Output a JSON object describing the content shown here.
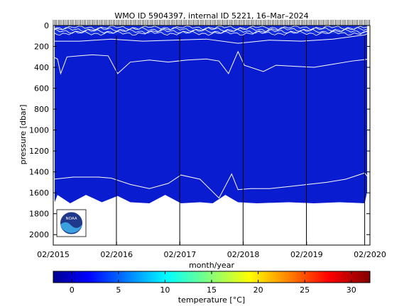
{
  "chart_data": {
    "type": "heatmap",
    "title": "WMO ID 5904397, internal ID 5221, 16–Mar–2024",
    "xlabel": "month/year",
    "ylabel": "pressure [dbar]",
    "x_tick_labels": [
      "02/2015",
      "02/2016",
      "02/2017",
      "02/2018",
      "02/2019",
      "02/2020"
    ],
    "x_tick_values": [
      2015.083,
      2016.083,
      2017.083,
      2018.083,
      2019.083,
      2020.083
    ],
    "xlim": [
      2015.083,
      2020.083
    ],
    "y_tick_labels": [
      "0",
      "200",
      "400",
      "600",
      "800",
      "1000",
      "1200",
      "1400",
      "1600",
      "1800",
      "2000"
    ],
    "y_tick_values": [
      0,
      200,
      400,
      600,
      800,
      1000,
      1200,
      1400,
      1600,
      1800,
      2000
    ],
    "ylim": [
      0,
      2100
    ],
    "y_reversed": true,
    "colorbar": {
      "label": "temperature [°C]",
      "range": [
        -2,
        32
      ],
      "tick_labels": [
        "0",
        "5",
        "10",
        "15",
        "20",
        "25",
        "30"
      ],
      "tick_values": [
        0,
        5,
        10,
        15,
        20,
        25,
        30
      ],
      "colormap": "jet"
    },
    "field_color": "#0a1ccf",
    "contour_color": "#ffffff",
    "vertical_marker_years": [
      2016.08,
      2017.08,
      2018.08,
      2019.08,
      2020.0
    ],
    "profile_bottom_dbar": 1690,
    "contours": [
      {
        "level_dbar_approx": 120,
        "x": [
          2015.08,
          2015.5,
          2016.0,
          2016.5,
          2017.0,
          2017.5,
          2018.0,
          2018.5,
          2019.0,
          2019.5,
          2020.0,
          2020.08
        ],
        "y": [
          150,
          150,
          130,
          150,
          140,
          130,
          170,
          140,
          150,
          130,
          90,
          70
        ]
      },
      {
        "level_dbar_approx": 320,
        "x": [
          2015.08,
          2015.15,
          2015.2,
          2015.3,
          2015.5,
          2015.7,
          2015.95,
          2016.1,
          2016.3,
          2016.6,
          2016.9,
          2017.2,
          2017.5,
          2017.7,
          2017.85,
          2018.0,
          2018.1,
          2018.4,
          2018.6,
          2018.9,
          2019.2,
          2019.5,
          2019.8,
          2020.08
        ],
        "y": [
          300,
          320,
          460,
          300,
          290,
          280,
          290,
          460,
          350,
          330,
          350,
          330,
          320,
          340,
          460,
          250,
          380,
          440,
          380,
          390,
          400,
          370,
          340,
          320
        ]
      },
      {
        "level_dbar_approx": 1500,
        "x": [
          2015.08,
          2015.4,
          2015.8,
          2016.0,
          2016.3,
          2016.6,
          2016.9,
          2017.1,
          2017.4,
          2017.7,
          2017.9,
          2018.0,
          2018.2,
          2018.5,
          2018.8,
          2019.1,
          2019.4,
          2019.7,
          2020.0,
          2020.08
        ],
        "y": [
          1470,
          1450,
          1450,
          1460,
          1520,
          1560,
          1510,
          1430,
          1470,
          1650,
          1420,
          1570,
          1560,
          1560,
          1540,
          1520,
          1500,
          1470,
          1410,
          1470
        ]
      }
    ]
  },
  "logo_text": "NOAA"
}
